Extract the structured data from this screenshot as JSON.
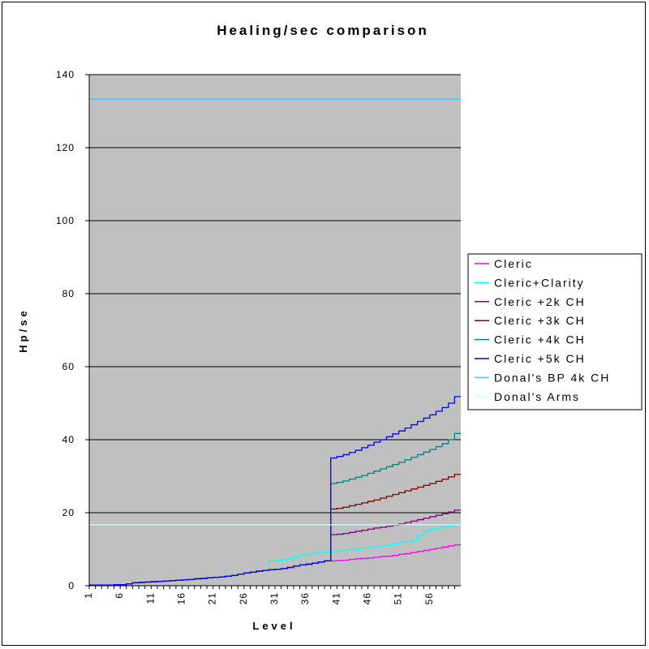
{
  "chart_data": {
    "type": "line",
    "title": "Healing/sec comparison",
    "xlabel": "Level",
    "ylabel": "Hp/se",
    "ylim": [
      0,
      140
    ],
    "yticks": [
      0,
      20,
      40,
      60,
      80,
      100,
      120,
      140
    ],
    "x": [
      1,
      2,
      3,
      4,
      5,
      6,
      7,
      8,
      9,
      10,
      11,
      12,
      13,
      14,
      15,
      16,
      17,
      18,
      19,
      20,
      21,
      22,
      23,
      24,
      25,
      26,
      27,
      28,
      29,
      30,
      31,
      32,
      33,
      34,
      35,
      36,
      37,
      38,
      39,
      40,
      41,
      42,
      43,
      44,
      45,
      46,
      47,
      48,
      49,
      50,
      51,
      52,
      53,
      54,
      55,
      56,
      57,
      58,
      59,
      60
    ],
    "xtick_labels": [
      "1",
      "6",
      "11",
      "16",
      "21",
      "26",
      "31",
      "36",
      "41",
      "46",
      "51",
      "56"
    ],
    "grid": true,
    "plot_background": "#c0c0c0",
    "legend_position": "right",
    "series": [
      {
        "name": "Cleric",
        "color": "#ff00ff",
        "values": [
          0.2,
          0.2,
          0.2,
          0.2,
          0.3,
          0.3,
          0.5,
          0.8,
          0.9,
          1.0,
          1.1,
          1.2,
          1.3,
          1.4,
          1.5,
          1.6,
          1.7,
          1.9,
          2.0,
          2.2,
          2.3,
          2.4,
          2.6,
          2.8,
          3.2,
          3.5,
          3.7,
          4.0,
          4.2,
          4.4,
          4.5,
          4.7,
          5.0,
          5.4,
          5.7,
          5.9,
          6.2,
          6.5,
          6.8,
          6.8,
          6.9,
          7.0,
          7.2,
          7.4,
          7.5,
          7.6,
          7.8,
          8.0,
          8.1,
          8.3,
          8.6,
          8.8,
          9.1,
          9.4,
          9.7,
          10.0,
          10.3,
          10.6,
          10.9,
          11.2
        ]
      },
      {
        "name": "Cleric+Clarity",
        "color": "#00ffff",
        "values": [
          0.2,
          0.2,
          0.2,
          0.2,
          0.3,
          0.3,
          0.5,
          0.8,
          0.9,
          1.0,
          1.1,
          1.2,
          1.3,
          1.4,
          1.5,
          1.6,
          1.7,
          1.9,
          2.0,
          2.2,
          2.3,
          2.4,
          2.6,
          2.8,
          3.2,
          3.5,
          3.7,
          4.0,
          4.2,
          6.8,
          6.9,
          7.1,
          7.4,
          7.8,
          8.3,
          8.6,
          8.9,
          9.1,
          9.2,
          9.3,
          9.5,
          9.7,
          9.9,
          10.1,
          10.3,
          10.5,
          10.7,
          10.9,
          11.1,
          11.5,
          11.9,
          12.1,
          12.4,
          13.8,
          14.9,
          15.5,
          15.8,
          16.1,
          16.4,
          16.7
        ]
      },
      {
        "name": "Cleric +2k CH",
        "color": "#800080",
        "values": [
          0.2,
          0.2,
          0.2,
          0.2,
          0.3,
          0.3,
          0.5,
          0.8,
          0.9,
          1.0,
          1.1,
          1.2,
          1.3,
          1.4,
          1.5,
          1.6,
          1.7,
          1.9,
          2.0,
          2.2,
          2.3,
          2.4,
          2.6,
          2.8,
          3.2,
          3.5,
          3.7,
          4.0,
          4.2,
          4.4,
          4.5,
          4.7,
          5.0,
          5.4,
          5.7,
          5.9,
          6.2,
          6.5,
          6.8,
          14.0,
          14.1,
          14.3,
          14.6,
          14.9,
          15.2,
          15.5,
          15.8,
          16.0,
          16.3,
          16.6,
          16.9,
          17.3,
          17.7,
          18.1,
          18.5,
          18.9,
          19.3,
          19.7,
          20.2,
          20.7
        ]
      },
      {
        "name": "Cleric +3k CH",
        "color": "#800000",
        "values": [
          0.2,
          0.2,
          0.2,
          0.2,
          0.3,
          0.3,
          0.5,
          0.8,
          0.9,
          1.0,
          1.1,
          1.2,
          1.3,
          1.4,
          1.5,
          1.6,
          1.7,
          1.9,
          2.0,
          2.2,
          2.3,
          2.4,
          2.6,
          2.8,
          3.2,
          3.5,
          3.7,
          4.0,
          4.2,
          4.4,
          4.5,
          4.7,
          5.0,
          5.4,
          5.7,
          5.9,
          6.2,
          6.5,
          6.8,
          21.0,
          21.2,
          21.5,
          21.9,
          22.3,
          22.7,
          23.1,
          23.5,
          24.0,
          24.5,
          25.0,
          25.5,
          26.0,
          26.5,
          27.0,
          27.5,
          28.0,
          28.6,
          29.2,
          29.8,
          30.5
        ]
      },
      {
        "name": "Cleric +4k CH",
        "color": "#008080",
        "values": [
          0.2,
          0.2,
          0.2,
          0.2,
          0.3,
          0.3,
          0.5,
          0.8,
          0.9,
          1.0,
          1.1,
          1.2,
          1.3,
          1.4,
          1.5,
          1.6,
          1.7,
          1.9,
          2.0,
          2.2,
          2.3,
          2.4,
          2.6,
          2.8,
          3.2,
          3.5,
          3.7,
          4.0,
          4.2,
          4.4,
          4.5,
          4.7,
          5.0,
          5.4,
          5.7,
          5.9,
          6.2,
          6.5,
          6.8,
          28.0,
          28.3,
          28.7,
          29.2,
          29.7,
          30.2,
          30.8,
          31.4,
          32.0,
          32.6,
          33.2,
          33.8,
          34.5,
          35.2,
          35.9,
          36.6,
          37.3,
          38.1,
          38.9,
          40.0,
          41.7
        ]
      },
      {
        "name": "Cleric +5k CH",
        "color": "#0000ff",
        "values": [
          0.2,
          0.2,
          0.2,
          0.2,
          0.3,
          0.3,
          0.5,
          0.8,
          0.9,
          1.0,
          1.1,
          1.2,
          1.3,
          1.4,
          1.5,
          1.6,
          1.7,
          1.9,
          2.0,
          2.2,
          2.3,
          2.4,
          2.6,
          2.8,
          3.2,
          3.5,
          3.7,
          4.0,
          4.2,
          4.4,
          4.5,
          4.7,
          5.0,
          5.4,
          5.7,
          5.9,
          6.2,
          6.5,
          6.8,
          35.0,
          35.4,
          35.9,
          36.5,
          37.1,
          37.8,
          38.5,
          39.3,
          40.0,
          40.8,
          41.6,
          42.4,
          43.2,
          44.1,
          45.0,
          45.9,
          46.8,
          47.8,
          48.8,
          50.0,
          51.8
        ]
      },
      {
        "name": "Donal's BP 4k CH",
        "color": "#33ccff",
        "values": [
          133.3,
          133.3,
          133.3,
          133.3,
          133.3,
          133.3,
          133.3,
          133.3,
          133.3,
          133.3,
          133.3,
          133.3,
          133.3,
          133.3,
          133.3,
          133.3,
          133.3,
          133.3,
          133.3,
          133.3,
          133.3,
          133.3,
          133.3,
          133.3,
          133.3,
          133.3,
          133.3,
          133.3,
          133.3,
          133.3,
          133.3,
          133.3,
          133.3,
          133.3,
          133.3,
          133.3,
          133.3,
          133.3,
          133.3,
          133.3,
          133.3,
          133.3,
          133.3,
          133.3,
          133.3,
          133.3,
          133.3,
          133.3,
          133.3,
          133.3,
          133.3,
          133.3,
          133.3,
          133.3,
          133.3,
          133.3,
          133.3,
          133.3,
          133.3,
          133.3
        ]
      },
      {
        "name": "Donal's Arms",
        "color": "#ccffff",
        "values": [
          16.7,
          16.7,
          16.7,
          16.7,
          16.7,
          16.7,
          16.7,
          16.7,
          16.7,
          16.7,
          16.7,
          16.7,
          16.7,
          16.7,
          16.7,
          16.7,
          16.7,
          16.7,
          16.7,
          16.7,
          16.7,
          16.7,
          16.7,
          16.7,
          16.7,
          16.7,
          16.7,
          16.7,
          16.7,
          16.7,
          16.7,
          16.7,
          16.7,
          16.7,
          16.7,
          16.7,
          16.7,
          16.7,
          16.7,
          16.7,
          16.7,
          16.7,
          16.7,
          16.7,
          16.7,
          16.7,
          16.7,
          16.7,
          16.7,
          16.7,
          16.7,
          16.7,
          16.7,
          16.7,
          16.7,
          16.7,
          16.7,
          16.7,
          16.7,
          16.7
        ]
      }
    ]
  }
}
